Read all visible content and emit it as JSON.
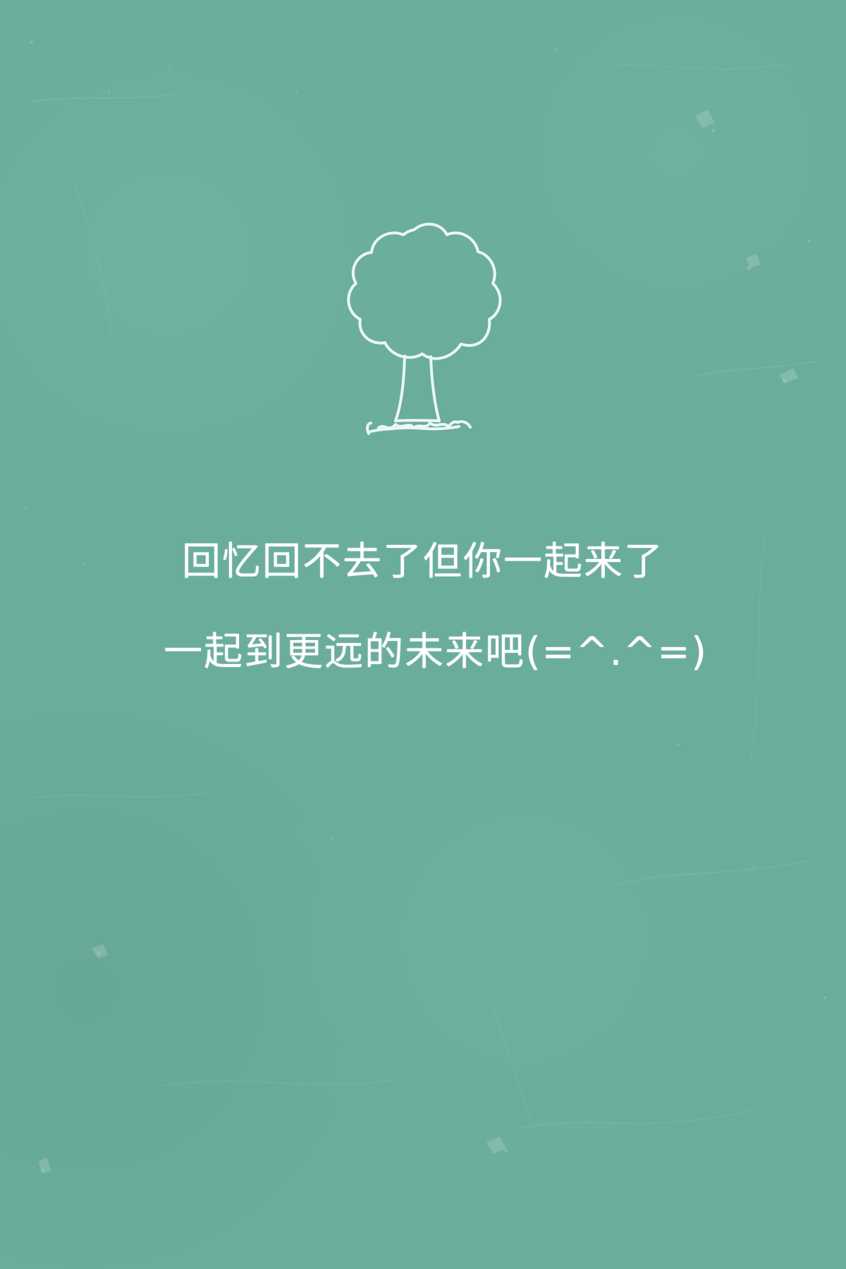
{
  "background": {
    "color": "#6aad9c",
    "chalk_color": "#f2fbf8"
  },
  "illustration": {
    "icon": "tree-icon"
  },
  "quote": {
    "line1": "回忆回不去了但你一起来了",
    "line2": "一起到更远的未来吧(=^.^=)"
  }
}
